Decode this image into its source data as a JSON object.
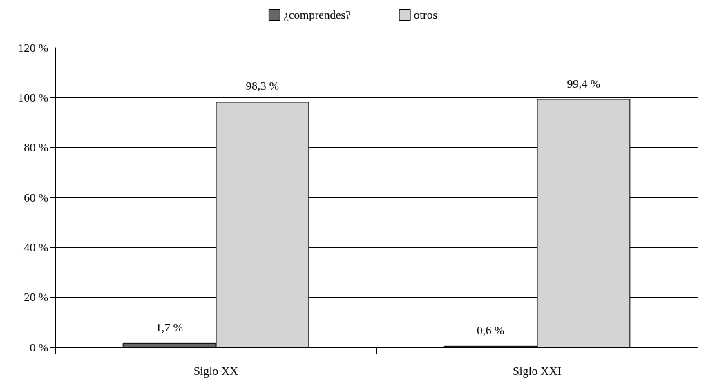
{
  "chart_data": {
    "type": "bar",
    "categories": [
      "Siglo XX",
      "Siglo XXI"
    ],
    "series": [
      {
        "name": "¿comprendes?",
        "color": "#666666",
        "values": [
          1.7,
          0.6
        ],
        "value_labels": [
          "1,7 %",
          "0,6 %"
        ]
      },
      {
        "name": "otros",
        "color": "#d4d4d4",
        "values": [
          98.3,
          99.4
        ],
        "value_labels": [
          "98,3 %",
          "99,4 %"
        ]
      }
    ],
    "ylim": [
      0,
      120
    ],
    "yticks": [
      {
        "value": 0,
        "label": "0 %"
      },
      {
        "value": 20,
        "label": "20 %"
      },
      {
        "value": 40,
        "label": "40 %"
      },
      {
        "value": 60,
        "label": "60 %"
      },
      {
        "value": 80,
        "label": "80 %"
      },
      {
        "value": 100,
        "label": "100 %"
      },
      {
        "value": 120,
        "label": "120 %"
      }
    ],
    "grid": "y",
    "legend": "top"
  }
}
